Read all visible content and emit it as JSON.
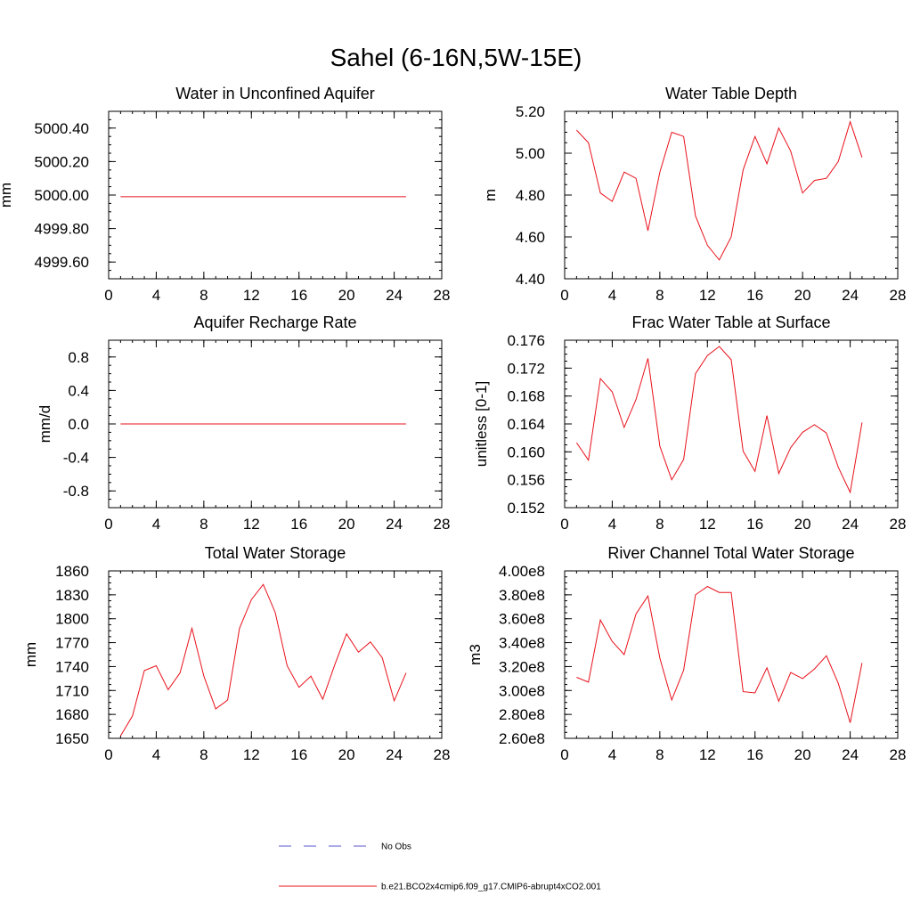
{
  "figure": {
    "title": "Sahel (6-16N,5W-15E)"
  },
  "colors": {
    "series": "#e8101a",
    "obs": "#5555cc",
    "axis": "#000000"
  },
  "legend": {
    "items": [
      {
        "label": "No Obs",
        "style": "dashed",
        "color": "#5555cc"
      },
      {
        "label": "b.e21.BCO2x4cmip6.f09_g17.CMIP6-abrupt4xCO2.001",
        "style": "solid",
        "color": "#e8101a"
      }
    ]
  },
  "chart_data": [
    {
      "type": "line",
      "title": "Water in Unconfined Aquifer",
      "xlabel": "",
      "ylabel": "mm",
      "xlim": [
        0,
        28
      ],
      "ylim": [
        4999.5,
        5000.5
      ],
      "xticks": [
        0,
        4,
        8,
        12,
        16,
        20,
        24,
        28
      ],
      "xtick_labels": [
        "0",
        "4",
        "8",
        "12",
        "16",
        "20",
        "24",
        "28"
      ],
      "yticks": [
        4999.6,
        4999.8,
        5000.0,
        5000.2,
        5000.4
      ],
      "ytick_labels": [
        "4999.60",
        "4999.80",
        "5000.00",
        "5000.20",
        "5000.40"
      ],
      "x": [
        1,
        2,
        3,
        4,
        5,
        6,
        7,
        8,
        9,
        10,
        11,
        12,
        13,
        14,
        15,
        16,
        17,
        18,
        19,
        20,
        21,
        22,
        23,
        24,
        25
      ],
      "series": [
        {
          "name": "b.e21.BCO2x4cmip6.f09_g17.CMIP6-abrupt4xCO2.001",
          "values": [
            4999.99,
            4999.99,
            4999.99,
            4999.99,
            4999.99,
            4999.99,
            4999.99,
            4999.99,
            4999.99,
            4999.99,
            4999.99,
            4999.99,
            4999.99,
            4999.99,
            4999.99,
            4999.99,
            4999.99,
            4999.99,
            4999.99,
            4999.99,
            4999.99,
            4999.99,
            4999.99,
            4999.99,
            4999.99
          ]
        }
      ]
    },
    {
      "type": "line",
      "title": "Water Table Depth",
      "xlabel": "",
      "ylabel": "m",
      "xlim": [
        0,
        28
      ],
      "ylim": [
        4.4,
        5.2
      ],
      "xticks": [
        0,
        4,
        8,
        12,
        16,
        20,
        24,
        28
      ],
      "xtick_labels": [
        "0",
        "4",
        "8",
        "12",
        "16",
        "20",
        "24",
        "28"
      ],
      "yticks": [
        4.4,
        4.6,
        4.8,
        5.0,
        5.2
      ],
      "ytick_labels": [
        "4.40",
        "4.60",
        "4.80",
        "5.00",
        "5.20"
      ],
      "x": [
        1,
        2,
        3,
        4,
        5,
        6,
        7,
        8,
        9,
        10,
        11,
        12,
        13,
        14,
        15,
        16,
        17,
        18,
        19,
        20,
        21,
        22,
        23,
        24,
        25
      ],
      "series": [
        {
          "name": "b.e21.BCO2x4cmip6.f09_g17.CMIP6-abrupt4xCO2.001",
          "values": [
            5.11,
            5.05,
            4.81,
            4.77,
            4.91,
            4.88,
            4.63,
            4.91,
            5.1,
            5.08,
            4.7,
            4.56,
            4.49,
            4.6,
            4.92,
            5.08,
            4.95,
            5.12,
            5.01,
            4.81,
            4.87,
            4.88,
            4.96,
            5.15,
            4.98
          ]
        }
      ]
    },
    {
      "type": "line",
      "title": "Aquifer Recharge Rate",
      "xlabel": "",
      "ylabel": "mm/d",
      "xlim": [
        0,
        28
      ],
      "ylim": [
        -1.0,
        1.0
      ],
      "xticks": [
        0,
        4,
        8,
        12,
        16,
        20,
        24,
        28
      ],
      "xtick_labels": [
        "0",
        "4",
        "8",
        "12",
        "16",
        "20",
        "24",
        "28"
      ],
      "yticks": [
        -0.8,
        -0.4,
        0.0,
        0.4,
        0.8
      ],
      "ytick_labels": [
        "-0.8",
        "-0.4",
        "0.0",
        "0.4",
        "0.8"
      ],
      "x": [
        1,
        2,
        3,
        4,
        5,
        6,
        7,
        8,
        9,
        10,
        11,
        12,
        13,
        14,
        15,
        16,
        17,
        18,
        19,
        20,
        21,
        22,
        23,
        24,
        25
      ],
      "series": [
        {
          "name": "b.e21.BCO2x4cmip6.f09_g17.CMIP6-abrupt4xCO2.001",
          "values": [
            0,
            0,
            0,
            0,
            0,
            0,
            0,
            0,
            0,
            0,
            0,
            0,
            0,
            0,
            0,
            0,
            0,
            0,
            0,
            0,
            0,
            0,
            0,
            0,
            0
          ]
        }
      ]
    },
    {
      "type": "line",
      "title": "Frac Water Table at Surface",
      "xlabel": "",
      "ylabel": "unitless [0-1]",
      "xlim": [
        0,
        28
      ],
      "ylim": [
        0.152,
        0.176
      ],
      "xticks": [
        0,
        4,
        8,
        12,
        16,
        20,
        24,
        28
      ],
      "xtick_labels": [
        "0",
        "4",
        "8",
        "12",
        "16",
        "20",
        "24",
        "28"
      ],
      "yticks": [
        0.152,
        0.156,
        0.16,
        0.164,
        0.168,
        0.172,
        0.176
      ],
      "ytick_labels": [
        "0.152",
        "0.156",
        "0.160",
        "0.164",
        "0.168",
        "0.172",
        "0.176"
      ],
      "x": [
        1,
        2,
        3,
        4,
        5,
        6,
        7,
        8,
        9,
        10,
        11,
        12,
        13,
        14,
        15,
        16,
        17,
        18,
        19,
        20,
        21,
        22,
        23,
        24,
        25
      ],
      "series": [
        {
          "name": "b.e21.BCO2x4cmip6.f09_g17.CMIP6-abrupt4xCO2.001",
          "values": [
            0.1613,
            0.1588,
            0.1705,
            0.1686,
            0.1635,
            0.1675,
            0.1734,
            0.1608,
            0.156,
            0.1589,
            0.1712,
            0.1738,
            0.1751,
            0.1732,
            0.1601,
            0.1572,
            0.1652,
            0.1569,
            0.1606,
            0.1628,
            0.1639,
            0.1627,
            0.1578,
            0.1542,
            0.1642
          ]
        }
      ]
    },
    {
      "type": "line",
      "title": "Total Water Storage",
      "xlabel": "",
      "ylabel": "mm",
      "xlim": [
        0,
        28
      ],
      "ylim": [
        1650,
        1860
      ],
      "xticks": [
        0,
        4,
        8,
        12,
        16,
        20,
        24,
        28
      ],
      "xtick_labels": [
        "0",
        "4",
        "8",
        "12",
        "16",
        "20",
        "24",
        "28"
      ],
      "yticks": [
        1650,
        1680,
        1710,
        1740,
        1770,
        1800,
        1830,
        1860
      ],
      "ytick_labels": [
        "1650",
        "1680",
        "1710",
        "1740",
        "1770",
        "1800",
        "1830",
        "1860"
      ],
      "x": [
        1,
        2,
        3,
        4,
        5,
        6,
        7,
        8,
        9,
        10,
        11,
        12,
        13,
        14,
        15,
        16,
        17,
        18,
        19,
        20,
        21,
        22,
        23,
        24,
        25
      ],
      "series": [
        {
          "name": "b.e21.BCO2x4cmip6.f09_g17.CMIP6-abrupt4xCO2.001",
          "values": [
            1653,
            1678,
            1735,
            1741,
            1711,
            1732,
            1788,
            1728,
            1687,
            1698,
            1788,
            1824,
            1843,
            1808,
            1741,
            1714,
            1728,
            1699,
            1742,
            1781,
            1758,
            1771,
            1751,
            1697,
            1732
          ]
        }
      ]
    },
    {
      "type": "line",
      "title": "River Channel Total Water Storage",
      "xlabel": "",
      "ylabel": "m3",
      "xlim": [
        0,
        28
      ],
      "ylim": [
        260000000.0,
        400000000.0
      ],
      "xticks": [
        0,
        4,
        8,
        12,
        16,
        20,
        24,
        28
      ],
      "xtick_labels": [
        "0",
        "4",
        "8",
        "12",
        "16",
        "20",
        "24",
        "28"
      ],
      "yticks": [
        260000000.0,
        280000000.0,
        300000000.0,
        320000000.0,
        340000000.0,
        360000000.0,
        380000000.0,
        400000000.0
      ],
      "ytick_labels": [
        "2.60e8",
        "2.80e8",
        "3.00e8",
        "3.20e8",
        "3.40e8",
        "3.60e8",
        "3.80e8",
        "4.00e8"
      ],
      "x": [
        1,
        2,
        3,
        4,
        5,
        6,
        7,
        8,
        9,
        10,
        11,
        12,
        13,
        14,
        15,
        16,
        17,
        18,
        19,
        20,
        21,
        22,
        23,
        24,
        25
      ],
      "series": [
        {
          "name": "b.e21.BCO2x4cmip6.f09_g17.CMIP6-abrupt4xCO2.001",
          "values": [
            311000000.0,
            307000000.0,
            359000000.0,
            341000000.0,
            330000000.0,
            364000000.0,
            379000000.0,
            327000000.0,
            292000000.0,
            317000000.0,
            380000000.0,
            387000000.0,
            382000000.0,
            382000000.0,
            299000000.0,
            298000000.0,
            319000000.0,
            291000000.0,
            315000000.0,
            310000000.0,
            318000000.0,
            329000000.0,
            306000000.0,
            273000000.0,
            323000000.0
          ]
        }
      ]
    }
  ]
}
